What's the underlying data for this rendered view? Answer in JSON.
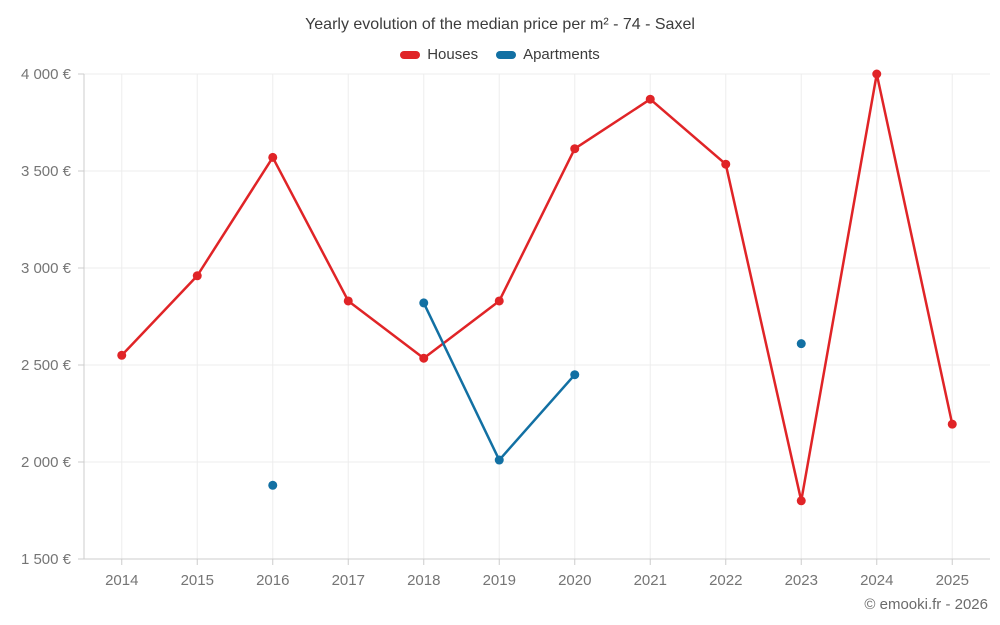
{
  "page": {
    "title": "Yearly evolution of the median price per m² - 74 - Saxel",
    "footer": "© emooki.fr - 2026"
  },
  "legend": {
    "items": [
      {
        "label": "Houses",
        "color": "#e02427"
      },
      {
        "label": "Apartments",
        "color": "#1270a3"
      }
    ]
  },
  "chart_data": {
    "type": "line",
    "title": "Yearly evolution of the median price per m² - 74 - Saxel",
    "xlabel": "",
    "ylabel": "",
    "categories": [
      "2014",
      "2015",
      "2016",
      "2017",
      "2018",
      "2019",
      "2020",
      "2021",
      "2022",
      "2023",
      "2024",
      "2025"
    ],
    "series": [
      {
        "name": "Houses",
        "color": "#e02427",
        "values": [
          2550,
          2960,
          3570,
          2830,
          2535,
          2830,
          3615,
          3870,
          3535,
          1800,
          4000,
          2195
        ]
      },
      {
        "name": "Apartments",
        "color": "#1270a3",
        "values": [
          null,
          null,
          1880,
          null,
          2820,
          2010,
          2450,
          null,
          null,
          2610,
          null,
          null
        ]
      }
    ],
    "ylim": [
      1500,
      4000
    ],
    "ytick_values": [
      1500,
      2000,
      2500,
      3000,
      3500,
      4000
    ],
    "ytick_labels": [
      "1 500 €",
      "2 000 €",
      "2 500 €",
      "3 000 €",
      "3 500 €",
      "4 000 €"
    ],
    "grid": true,
    "legend_position": "top",
    "colors": {
      "grid": "#ededed",
      "axis": "#cccccc",
      "tick_label": "#757575",
      "title": "#3c3c3c",
      "footer": "#6b6b6b"
    }
  }
}
